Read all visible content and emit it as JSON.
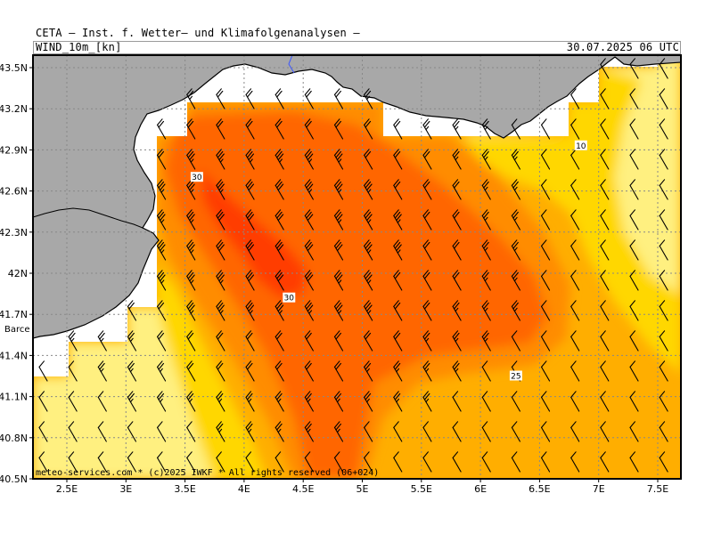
{
  "header": {
    "title": "CETA – Inst. f. Wetter– und Klimafolgenanalysen –",
    "parameter": "WIND_10m_[kn]",
    "valid_time": "30.07.2025 06 UTC"
  },
  "footer": "meteo-services.com * (c)2025 IWKF * All rights reserved (06+024)",
  "city_label": "Barce",
  "axes": {
    "x_ticks": [
      "2.5E",
      "3E",
      "3.5E",
      "4E",
      "4.5E",
      "5E",
      "5.5E",
      "6E",
      "6.5E",
      "7E",
      "7.5E"
    ],
    "y_ticks": [
      "43.5N",
      "43.2N",
      "42.9N",
      "42.6N",
      "42.3N",
      "42N",
      "41.7N",
      "41.4N",
      "41.1N",
      "40.8N",
      "40.5N"
    ]
  },
  "contour_labels": [
    {
      "text": "30",
      "lon": 3.6,
      "lat": 42.7
    },
    {
      "text": "30",
      "lon": 4.38,
      "lat": 41.82
    },
    {
      "text": "25",
      "lon": 6.3,
      "lat": 41.25
    },
    {
      "text": "10",
      "lon": 6.85,
      "lat": 42.93
    }
  ],
  "colors": {
    "land": "#a8a8a8",
    "nodata": "#ffffff",
    "band_0_10": "#fff080",
    "band_10_15": "#ffd700",
    "band_15_20": "#ffae00",
    "band_20_25": "#ff8c00",
    "band_25_30": "#ff6600",
    "band_30_35": "#ff3c00"
  }
}
